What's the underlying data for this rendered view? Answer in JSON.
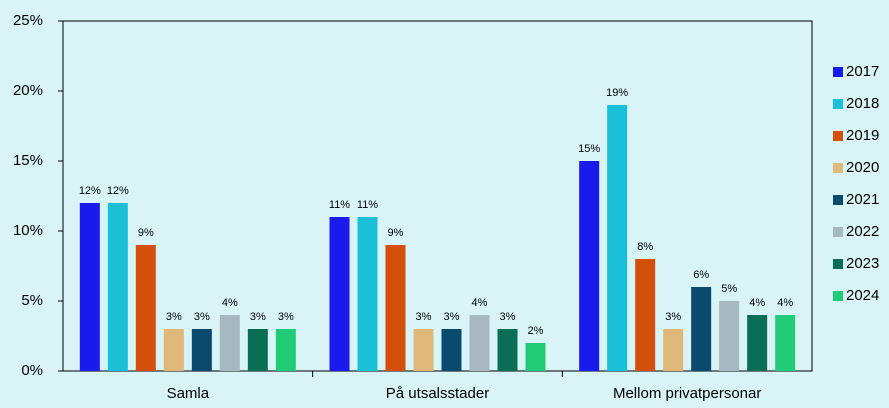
{
  "chart_data": {
    "type": "bar",
    "categories": [
      "Samla",
      "På utsalsstader",
      "Mellom privatpersonar"
    ],
    "series": [
      {
        "name": "2017",
        "color": "#1a1aee",
        "values": [
          12,
          11,
          15
        ],
        "value_labels": [
          "12%",
          "11%",
          "15%"
        ]
      },
      {
        "name": "2018",
        "color": "#19c0d8",
        "values": [
          12,
          11,
          19
        ],
        "value_labels": [
          "12%",
          "11%",
          "19%"
        ]
      },
      {
        "name": "2019",
        "color": "#d4500a",
        "values": [
          9,
          9,
          8
        ],
        "value_labels": [
          "9%",
          "9%",
          "8%"
        ]
      },
      {
        "name": "2020",
        "color": "#e0b87a",
        "values": [
          3,
          3,
          3
        ],
        "value_labels": [
          "3%",
          "3%",
          "3%"
        ]
      },
      {
        "name": "2021",
        "color": "#0a4a6e",
        "values": [
          3,
          3,
          6
        ],
        "value_labels": [
          "3%",
          "3%",
          "6%"
        ]
      },
      {
        "name": "2022",
        "color": "#a8b8c0",
        "values": [
          4,
          4,
          5
        ],
        "value_labels": [
          "4%",
          "4%",
          "5%"
        ]
      },
      {
        "name": "2023",
        "color": "#0a6e55",
        "values": [
          3,
          3,
          4
        ],
        "value_labels": [
          "3%",
          "3%",
          "4%"
        ]
      },
      {
        "name": "2024",
        "color": "#22cc77",
        "values": [
          3,
          2,
          4
        ],
        "value_labels": [
          "3%",
          "2%",
          "4%"
        ]
      }
    ],
    "ylim": [
      0,
      25
    ],
    "yticks": [
      {
        "value": 0,
        "label": "0%"
      },
      {
        "value": 5,
        "label": "5%"
      },
      {
        "value": 10,
        "label": "10%"
      },
      {
        "value": 15,
        "label": "15%"
      },
      {
        "value": 20,
        "label": "20%"
      },
      {
        "value": 25,
        "label": "25%"
      }
    ],
    "grid": false,
    "legend": "right"
  }
}
